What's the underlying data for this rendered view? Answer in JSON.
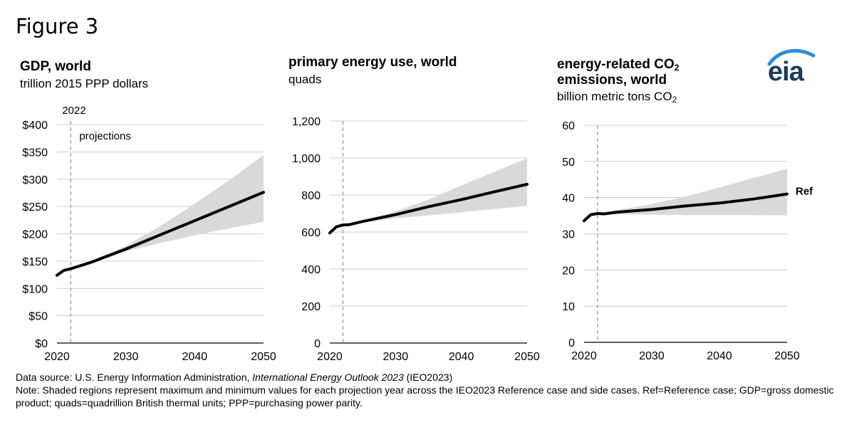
{
  "figure_label": "Figure 3",
  "logo": {
    "text": "eia",
    "color": "#1f3a5a",
    "arc_color": "#2e8fd6"
  },
  "chart_data": [
    {
      "type": "line",
      "title": "GDP, world",
      "subtitle": "trillion 2015 PPP dollars",
      "x": [
        2020,
        2021,
        2022,
        2025,
        2030,
        2035,
        2040,
        2045,
        2050
      ],
      "series": [
        {
          "values": [
            124,
            133,
            136,
            148,
            172,
            198,
            224,
            250,
            276
          ]
        }
      ],
      "band": {
        "x": [
          2022,
          2025,
          2030,
          2035,
          2040,
          2045,
          2050
        ],
        "upper": [
          136,
          150,
          178,
          214,
          255,
          298,
          344
        ],
        "lower": [
          136,
          146,
          168,
          183,
          197,
          210,
          222
        ]
      },
      "xlim": [
        2020,
        2050
      ],
      "ylim": [
        0,
        400
      ],
      "xticks": [
        2020,
        2030,
        2040,
        2050
      ],
      "yticks": [
        0,
        50,
        100,
        150,
        200,
        250,
        300,
        350,
        400
      ],
      "ytick_labels": [
        "$0",
        "$50",
        "$100",
        "$150",
        "$200",
        "$250",
        "$300",
        "$350",
        "$400"
      ],
      "vline": {
        "x": 2022,
        "label": "2022",
        "annotation": "projections"
      },
      "grid": "horizontal"
    },
    {
      "type": "line",
      "title": "primary energy use, world",
      "subtitle": "quads",
      "x": [
        2020,
        2021,
        2022,
        2023,
        2025,
        2030,
        2035,
        2040,
        2045,
        2050
      ],
      "series": [
        {
          "values": [
            595,
            628,
            638,
            640,
            657,
            694,
            737,
            775,
            817,
            858
          ]
        }
      ],
      "band": {
        "x": [
          2022,
          2025,
          2030,
          2035,
          2040,
          2045,
          2050
        ],
        "upper": [
          638,
          662,
          712,
          775,
          852,
          925,
          998
        ],
        "lower": [
          638,
          652,
          674,
          690,
          707,
          724,
          742
        ]
      },
      "xlim": [
        2020,
        2050
      ],
      "ylim": [
        0,
        1200
      ],
      "xticks": [
        2020,
        2030,
        2040,
        2050
      ],
      "yticks": [
        0,
        200,
        400,
        600,
        800,
        1000,
        1200
      ],
      "ytick_labels": [
        "0",
        "200",
        "400",
        "600",
        "800",
        "1,000",
        "1,200"
      ],
      "vline": {
        "x": 2022
      },
      "grid": "horizontal"
    },
    {
      "type": "line",
      "title": "energy-related CO2 emissions, world",
      "subtitle": "billion metric tons CO2",
      "x": [
        2020,
        2021,
        2022,
        2023,
        2025,
        2030,
        2035,
        2040,
        2045,
        2050
      ],
      "series": [
        {
          "name": "Ref",
          "values": [
            33.6,
            35.3,
            35.6,
            35.5,
            36.0,
            36.7,
            37.7,
            38.5,
            39.6,
            41.0
          ]
        }
      ],
      "band": {
        "x": [
          2022,
          2025,
          2030,
          2035,
          2040,
          2045,
          2050
        ],
        "upper": [
          35.6,
          36.6,
          38.2,
          40.3,
          42.8,
          45.4,
          48.0
        ],
        "lower": [
          35.6,
          35.4,
          35.3,
          35.2,
          35.2,
          35.2,
          35.1
        ]
      },
      "xlim": [
        2020,
        2050
      ],
      "ylim": [
        0,
        60
      ],
      "xticks": [
        2020,
        2030,
        2040,
        2050
      ],
      "yticks": [
        0,
        10,
        20,
        30,
        40,
        50,
        60
      ],
      "ytick_labels": [
        "0",
        "10",
        "20",
        "30",
        "40",
        "50",
        "60"
      ],
      "vline": {
        "x": 2022
      },
      "grid": "horizontal"
    }
  ],
  "panel3_title": {
    "line1": "energy-related CO",
    "sub1": "2",
    "line2": "emissions, world"
  },
  "panel3_subtitle": {
    "text": "billion metric tons CO",
    "sub": "2"
  },
  "footer": {
    "source_prefix": "Data source: U.S. Energy Information Administration, ",
    "source_title": "International Energy Outlook 2023",
    "source_suffix": " (IEO2023)",
    "note": "Note: Shaded regions represent maximum and minimum values for each projection year across the IEO2023 Reference case and side cases. Ref=Reference case; GDP=gross domestic product; quads=quadrillion British thermal units; PPP=purchasing power parity."
  },
  "colors": {
    "line": "#000000",
    "band": "#d9d9d9",
    "grid": "#bfbfbf",
    "vline": "#a6a6a6"
  }
}
